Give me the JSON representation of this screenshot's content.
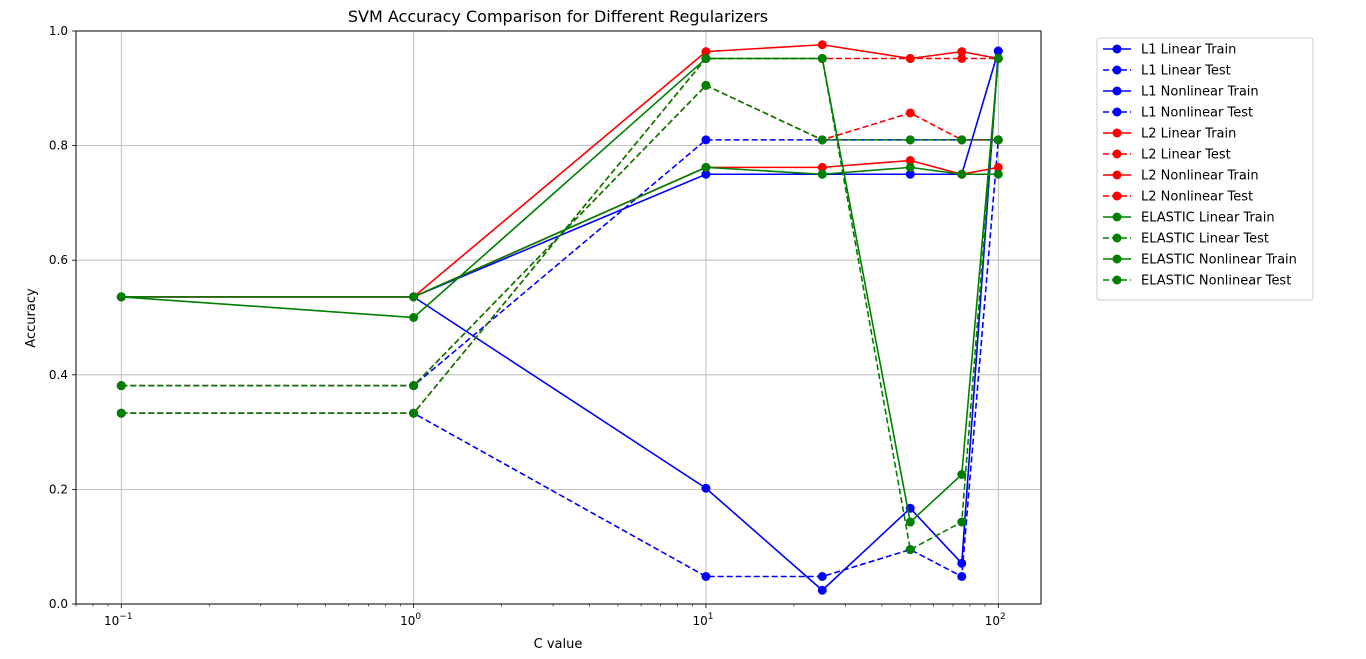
{
  "chart_data": {
    "type": "line",
    "title": "SVM Accuracy Comparison for Different Regularizers",
    "xlabel": "C value",
    "ylabel": "Accuracy",
    "xscale": "log",
    "xlim": [
      0.07,
      140
    ],
    "ylim": [
      0.0,
      1.0
    ],
    "grid": true,
    "legend_position": "outside-top-right",
    "x": [
      0.1,
      1,
      10,
      25,
      50,
      75,
      100
    ],
    "xticks": [
      {
        "value": 0.1,
        "base": "10",
        "exp": "−1"
      },
      {
        "value": 1,
        "base": "10",
        "exp": "0"
      },
      {
        "value": 10,
        "base": "10",
        "exp": "1"
      },
      {
        "value": 100,
        "base": "10",
        "exp": "2"
      }
    ],
    "yticks": [
      {
        "value": 0.0,
        "label": "0.0"
      },
      {
        "value": 0.2,
        "label": "0.2"
      },
      {
        "value": 0.4,
        "label": "0.4"
      },
      {
        "value": 0.6,
        "label": "0.6"
      },
      {
        "value": 0.8,
        "label": "0.8"
      },
      {
        "value": 1.0,
        "label": "1.0"
      }
    ],
    "series": [
      {
        "name": "L1 Linear Train",
        "color": "#0000ff",
        "dashed": false,
        "values": [
          0.536,
          0.536,
          0.75,
          0.75,
          0.75,
          0.75,
          0.965
        ]
      },
      {
        "name": "L1 Linear Test",
        "color": "#0000ff",
        "dashed": true,
        "values": [
          0.381,
          0.381,
          0.81,
          0.81,
          0.81,
          0.81,
          0.81
        ]
      },
      {
        "name": "L1 Nonlinear Train",
        "color": "#0000ff",
        "dashed": false,
        "values": [
          0.536,
          0.536,
          0.202,
          0.024,
          0.167,
          0.071,
          0.965
        ]
      },
      {
        "name": "L1 Nonlinear Test",
        "color": "#0000ff",
        "dashed": true,
        "values": [
          0.333,
          0.333,
          0.048,
          0.048,
          0.095,
          0.048,
          0.81
        ]
      },
      {
        "name": "L2 Linear Train",
        "color": "#ff0000",
        "dashed": false,
        "values": [
          0.536,
          0.536,
          0.762,
          0.762,
          0.774,
          0.75,
          0.762
        ]
      },
      {
        "name": "L2 Linear Test",
        "color": "#ff0000",
        "dashed": true,
        "values": [
          0.381,
          0.381,
          0.905,
          0.81,
          0.857,
          0.81,
          0.81
        ]
      },
      {
        "name": "L2 Nonlinear Train",
        "color": "#ff0000",
        "dashed": false,
        "values": [
          0.536,
          0.536,
          0.964,
          0.976,
          0.952,
          0.964,
          0.952
        ]
      },
      {
        "name": "L2 Nonlinear Test",
        "color": "#ff0000",
        "dashed": true,
        "values": [
          0.333,
          0.333,
          0.952,
          0.952,
          0.952,
          0.952,
          0.952
        ]
      },
      {
        "name": "ELASTIC Linear Train",
        "color": "#008000",
        "dashed": false,
        "values": [
          0.536,
          0.536,
          0.762,
          0.75,
          0.762,
          0.75,
          0.75
        ]
      },
      {
        "name": "ELASTIC Linear Test",
        "color": "#008000",
        "dashed": true,
        "values": [
          0.381,
          0.381,
          0.905,
          0.81,
          0.81,
          0.81,
          0.81
        ]
      },
      {
        "name": "ELASTIC Nonlinear Train",
        "color": "#008000",
        "dashed": false,
        "values": [
          0.536,
          0.5,
          0.952,
          0.952,
          0.143,
          0.226,
          0.952
        ]
      },
      {
        "name": "ELASTIC Nonlinear Test",
        "color": "#008000",
        "dashed": true,
        "values": [
          0.333,
          0.333,
          0.952,
          0.952,
          0.095,
          0.143,
          0.952
        ]
      }
    ]
  }
}
